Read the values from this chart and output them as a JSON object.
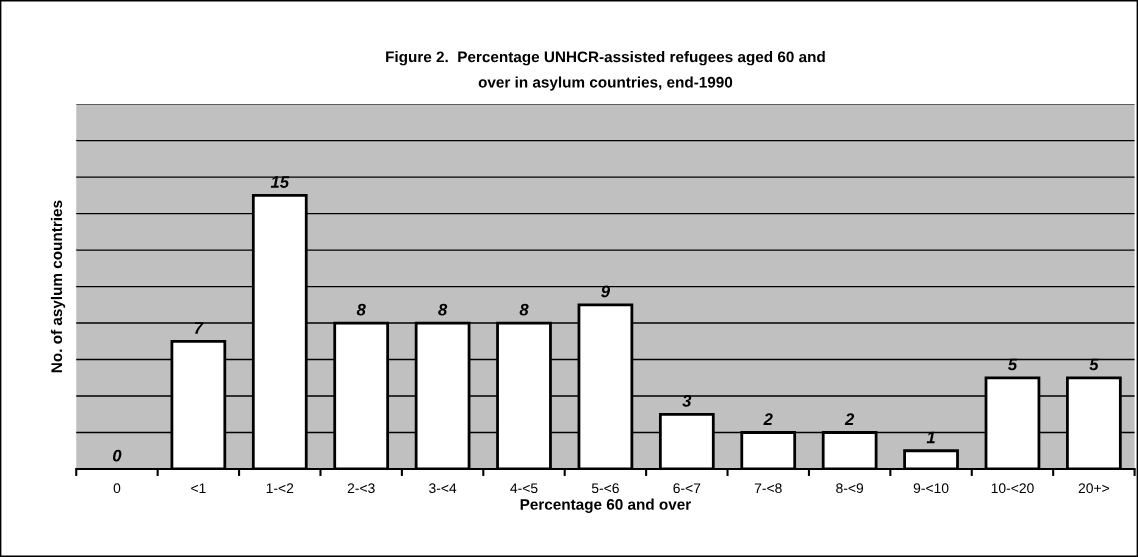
{
  "chart_data": {
    "type": "bar",
    "title": "Figure 2.  Percentage UNHCR-assisted refugees aged 60 and\nover in asylum countries, end-1990",
    "xlabel": "Percentage 60 and over",
    "ylabel": "No. of asylum countries",
    "categories": [
      "0",
      "<1",
      "1-<2",
      "2-<3",
      "3-<4",
      "4-<5",
      "5-<6",
      "6-<7",
      "7-<8",
      "8-<9",
      "9-<10",
      "10-<20",
      "20+>"
    ],
    "values": [
      0,
      7,
      15,
      8,
      8,
      8,
      9,
      3,
      2,
      2,
      1,
      5,
      5
    ],
    "color": "#ffffff",
    "data_labels": true,
    "grid": "y",
    "legend": false,
    "tick_labels": "x",
    "ylim": [
      0,
      20
    ],
    "yticks": [
      {
        "value": 0,
        "label": null
      },
      {
        "value": 2,
        "label": null
      },
      {
        "value": 4,
        "label": null
      },
      {
        "value": 6,
        "label": null
      },
      {
        "value": 8,
        "label": null
      },
      {
        "value": 10,
        "label": null
      },
      {
        "value": 12,
        "label": null
      },
      {
        "value": 14,
        "label": null
      },
      {
        "value": 16,
        "label": null
      },
      {
        "value": 18,
        "label": null
      },
      {
        "value": 20,
        "label": null
      }
    ]
  }
}
